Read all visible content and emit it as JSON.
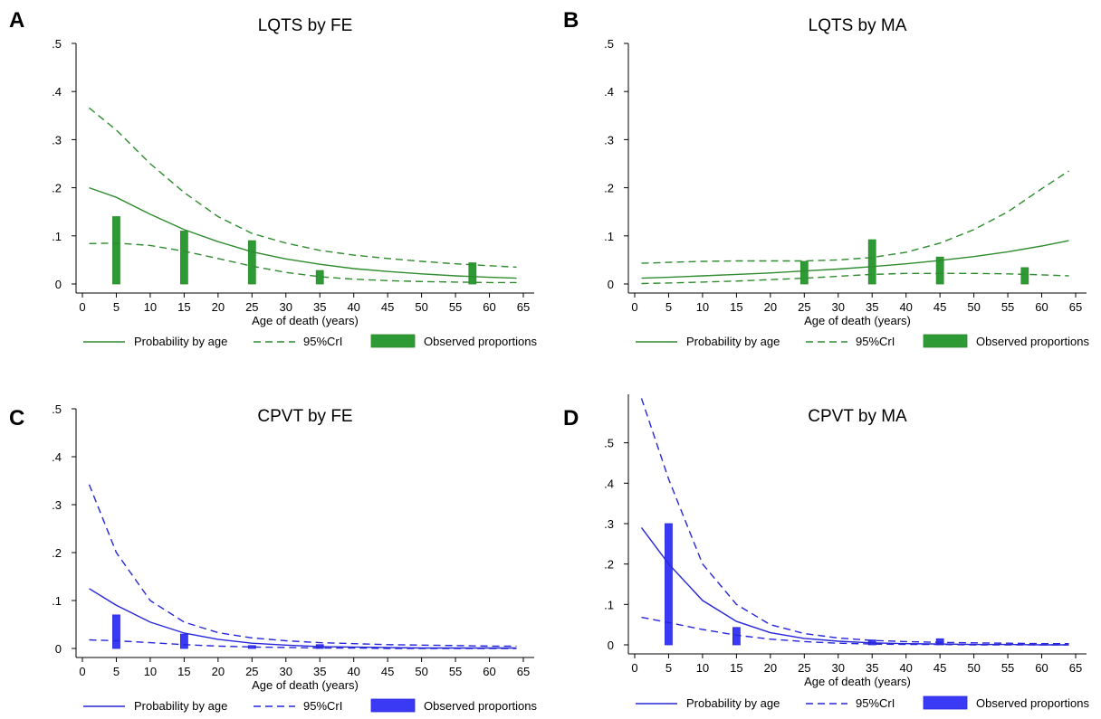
{
  "legend_labels": {
    "line": "Probability by age",
    "ci": "95%CrI",
    "bar": "Observed proportions"
  },
  "chart_data": [
    {
      "type": "line",
      "panel_letter": "A",
      "title": "LQTS by FE",
      "xlabel": "Age of death (years)",
      "ylabel": "",
      "xlim": [
        0,
        65
      ],
      "ylim": [
        0,
        0.5
      ],
      "x_ticks": [
        0,
        5,
        10,
        15,
        20,
        25,
        30,
        35,
        40,
        45,
        50,
        55,
        60,
        65
      ],
      "x_tick_labels": [
        "0",
        "5",
        "10",
        "15",
        "20",
        "25",
        "30",
        "35",
        "40",
        "45",
        "50",
        "55",
        "60",
        "65"
      ],
      "y_ticks": [
        0,
        0.1,
        0.2,
        0.3,
        0.4,
        0.5
      ],
      "y_tick_labels": [
        "0",
        ".1",
        ".2",
        ".3",
        ".4",
        ".5"
      ],
      "grid": false,
      "legend_position": "bottom",
      "color": "#2e8b2e",
      "bar_fill": "#2e9a35",
      "series": [
        {
          "name": "Probability by age",
          "style": "solid",
          "x": [
            1,
            5,
            10,
            15,
            20,
            25,
            30,
            35,
            40,
            45,
            50,
            55,
            60,
            64
          ],
          "y": [
            0.2,
            0.18,
            0.145,
            0.113,
            0.088,
            0.067,
            0.052,
            0.041,
            0.032,
            0.026,
            0.021,
            0.017,
            0.014,
            0.012
          ]
        },
        {
          "name": "95%CrI",
          "style": "dashed",
          "x": [
            1,
            5,
            10,
            15,
            20,
            25,
            30,
            35,
            40,
            45,
            50,
            55,
            60,
            64
          ],
          "y": [
            0.366,
            0.32,
            0.25,
            0.19,
            0.14,
            0.105,
            0.085,
            0.07,
            0.06,
            0.053,
            0.047,
            0.042,
            0.038,
            0.035
          ]
        },
        {
          "name": "95%CrI lower",
          "style": "dashed",
          "x": [
            1,
            5,
            10,
            15,
            20,
            25,
            30,
            35,
            40,
            45,
            50,
            55,
            60,
            64
          ],
          "y": [
            0.084,
            0.085,
            0.08,
            0.068,
            0.053,
            0.037,
            0.024,
            0.015,
            0.01,
            0.007,
            0.005,
            0.004,
            0.003,
            0.003
          ]
        }
      ],
      "bars": {
        "x": [
          5,
          15,
          25,
          35,
          57.5
        ],
        "values": [
          0.14,
          0.11,
          0.09,
          0.028,
          0.044
        ]
      }
    },
    {
      "type": "line",
      "panel_letter": "B",
      "title": "LQTS by MA",
      "xlabel": "Age of death (years)",
      "ylabel": "",
      "xlim": [
        0,
        65
      ],
      "ylim": [
        0,
        0.5
      ],
      "x_ticks": [
        0,
        5,
        10,
        15,
        20,
        25,
        30,
        35,
        40,
        45,
        50,
        55,
        60,
        65
      ],
      "x_tick_labels": [
        "0",
        "5",
        "10",
        "15",
        "20",
        "25",
        "30",
        "35",
        "40",
        "45",
        "50",
        "55",
        "60",
        "65"
      ],
      "y_ticks": [
        0,
        0.1,
        0.2,
        0.3,
        0.4,
        0.5
      ],
      "y_tick_labels": [
        "0",
        ".1",
        ".2",
        ".3",
        ".4",
        ".5"
      ],
      "grid": false,
      "legend_position": "bottom",
      "color": "#2e8b2e",
      "bar_fill": "#2e9a35",
      "series": [
        {
          "name": "Probability by age",
          "style": "solid",
          "x": [
            1,
            5,
            10,
            15,
            20,
            25,
            30,
            35,
            40,
            45,
            50,
            55,
            60,
            64
          ],
          "y": [
            0.012,
            0.014,
            0.017,
            0.02,
            0.023,
            0.027,
            0.031,
            0.036,
            0.042,
            0.049,
            0.057,
            0.067,
            0.079,
            0.09
          ]
        },
        {
          "name": "95%CrI",
          "style": "dashed",
          "x": [
            1,
            5,
            10,
            15,
            20,
            25,
            30,
            35,
            40,
            45,
            50,
            55,
            60,
            64
          ],
          "y": [
            0.043,
            0.045,
            0.047,
            0.048,
            0.048,
            0.048,
            0.05,
            0.055,
            0.066,
            0.085,
            0.113,
            0.15,
            0.198,
            0.235
          ]
        },
        {
          "name": "95%CrI lower",
          "style": "dashed",
          "x": [
            1,
            5,
            10,
            15,
            20,
            25,
            30,
            35,
            40,
            45,
            50,
            55,
            60,
            64
          ],
          "y": [
            0.001,
            0.002,
            0.004,
            0.006,
            0.009,
            0.012,
            0.016,
            0.02,
            0.022,
            0.022,
            0.022,
            0.021,
            0.019,
            0.017
          ]
        }
      ],
      "bars": {
        "x": [
          25,
          35,
          45,
          57.5
        ],
        "values": [
          0.047,
          0.092,
          0.056,
          0.034
        ]
      }
    },
    {
      "type": "line",
      "panel_letter": "C",
      "title": "CPVT by FE",
      "xlabel": "Age of death (years)",
      "ylabel": "",
      "xlim": [
        0,
        65
      ],
      "ylim": [
        0,
        0.5
      ],
      "x_ticks": [
        0,
        5,
        10,
        15,
        20,
        25,
        30,
        35,
        40,
        45,
        50,
        55,
        60,
        65
      ],
      "x_tick_labels": [
        "0",
        "5",
        "10",
        "15",
        "20",
        "25",
        "30",
        "35",
        "40",
        "45",
        "50",
        "55",
        "60",
        "65"
      ],
      "y_ticks": [
        0,
        0.1,
        0.2,
        0.3,
        0.4,
        0.5
      ],
      "y_tick_labels": [
        "0",
        ".1",
        ".2",
        ".3",
        ".4",
        ".5"
      ],
      "grid": false,
      "legend_position": "bottom",
      "color": "#2626d9",
      "bar_fill": "#3a3af5",
      "series": [
        {
          "name": "Probability by age",
          "style": "solid",
          "x": [
            1,
            5,
            10,
            15,
            20,
            25,
            30,
            35,
            40,
            45,
            50,
            55,
            60,
            64
          ],
          "y": [
            0.125,
            0.09,
            0.055,
            0.032,
            0.019,
            0.011,
            0.007,
            0.004,
            0.003,
            0.002,
            0.001,
            0.001,
            0.001,
            0.001
          ]
        },
        {
          "name": "95%CrI",
          "style": "dashed",
          "x": [
            1,
            5,
            10,
            15,
            20,
            25,
            30,
            35,
            40,
            45,
            50,
            55,
            60,
            64
          ],
          "y": [
            0.342,
            0.2,
            0.1,
            0.055,
            0.033,
            0.022,
            0.016,
            0.012,
            0.01,
            0.008,
            0.007,
            0.006,
            0.005,
            0.005
          ]
        },
        {
          "name": "95%CrI lower",
          "style": "dashed",
          "x": [
            1,
            5,
            10,
            15,
            20,
            25,
            30,
            35,
            40,
            45,
            50,
            55,
            60,
            64
          ],
          "y": [
            0.018,
            0.016,
            0.012,
            0.008,
            0.005,
            0.003,
            0.002,
            0.001,
            0.001,
            0.0,
            0.0,
            0.0,
            0.0,
            0.0
          ]
        }
      ],
      "bars": {
        "x": [
          5,
          15,
          25,
          35
        ],
        "values": [
          0.07,
          0.03,
          0.006,
          0.008
        ]
      }
    },
    {
      "type": "line",
      "panel_letter": "D",
      "title": "CPVT by MA",
      "xlabel": "Age of death (years)",
      "ylabel": "",
      "xlim": [
        0,
        65
      ],
      "ylim": [
        0,
        0.62
      ],
      "x_ticks": [
        0,
        5,
        10,
        15,
        20,
        25,
        30,
        35,
        40,
        45,
        50,
        55,
        60,
        65
      ],
      "x_tick_labels": [
        "0",
        "5",
        "10",
        "15",
        "20",
        "25",
        "30",
        "35",
        "40",
        "45",
        "50",
        "55",
        "60",
        "65"
      ],
      "y_ticks": [
        0,
        0.1,
        0.2,
        0.3,
        0.4,
        0.5
      ],
      "y_tick_labels": [
        "0",
        ".1",
        ".2",
        ".3",
        ".4",
        ".5"
      ],
      "grid": false,
      "legend_position": "bottom",
      "color": "#2626d9",
      "bar_fill": "#3a3af5",
      "series": [
        {
          "name": "Probability by age",
          "style": "solid",
          "x": [
            1,
            5,
            10,
            15,
            20,
            25,
            30,
            35,
            40,
            45,
            50,
            55,
            60,
            64
          ],
          "y": [
            0.29,
            0.2,
            0.11,
            0.058,
            0.03,
            0.016,
            0.009,
            0.005,
            0.003,
            0.002,
            0.001,
            0.001,
            0.0,
            0.0
          ]
        },
        {
          "name": "95%CrI",
          "style": "dashed",
          "x": [
            1,
            5,
            10,
            15,
            20,
            25,
            30,
            35,
            40,
            45,
            50,
            55,
            60,
            64
          ],
          "y": [
            0.61,
            0.41,
            0.2,
            0.1,
            0.05,
            0.028,
            0.017,
            0.011,
            0.008,
            0.006,
            0.005,
            0.004,
            0.003,
            0.003
          ]
        },
        {
          "name": "95%CrI lower",
          "style": "dashed",
          "x": [
            1,
            5,
            10,
            15,
            20,
            25,
            30,
            35,
            40,
            45,
            50,
            55,
            60,
            64
          ],
          "y": [
            0.068,
            0.055,
            0.038,
            0.024,
            0.014,
            0.008,
            0.004,
            0.002,
            0.001,
            0.001,
            0.0,
            0.0,
            0.0,
            0.0
          ]
        }
      ],
      "bars": {
        "x": [
          5,
          15,
          35,
          45
        ],
        "values": [
          0.3,
          0.043,
          0.012,
          0.015
        ]
      }
    }
  ]
}
